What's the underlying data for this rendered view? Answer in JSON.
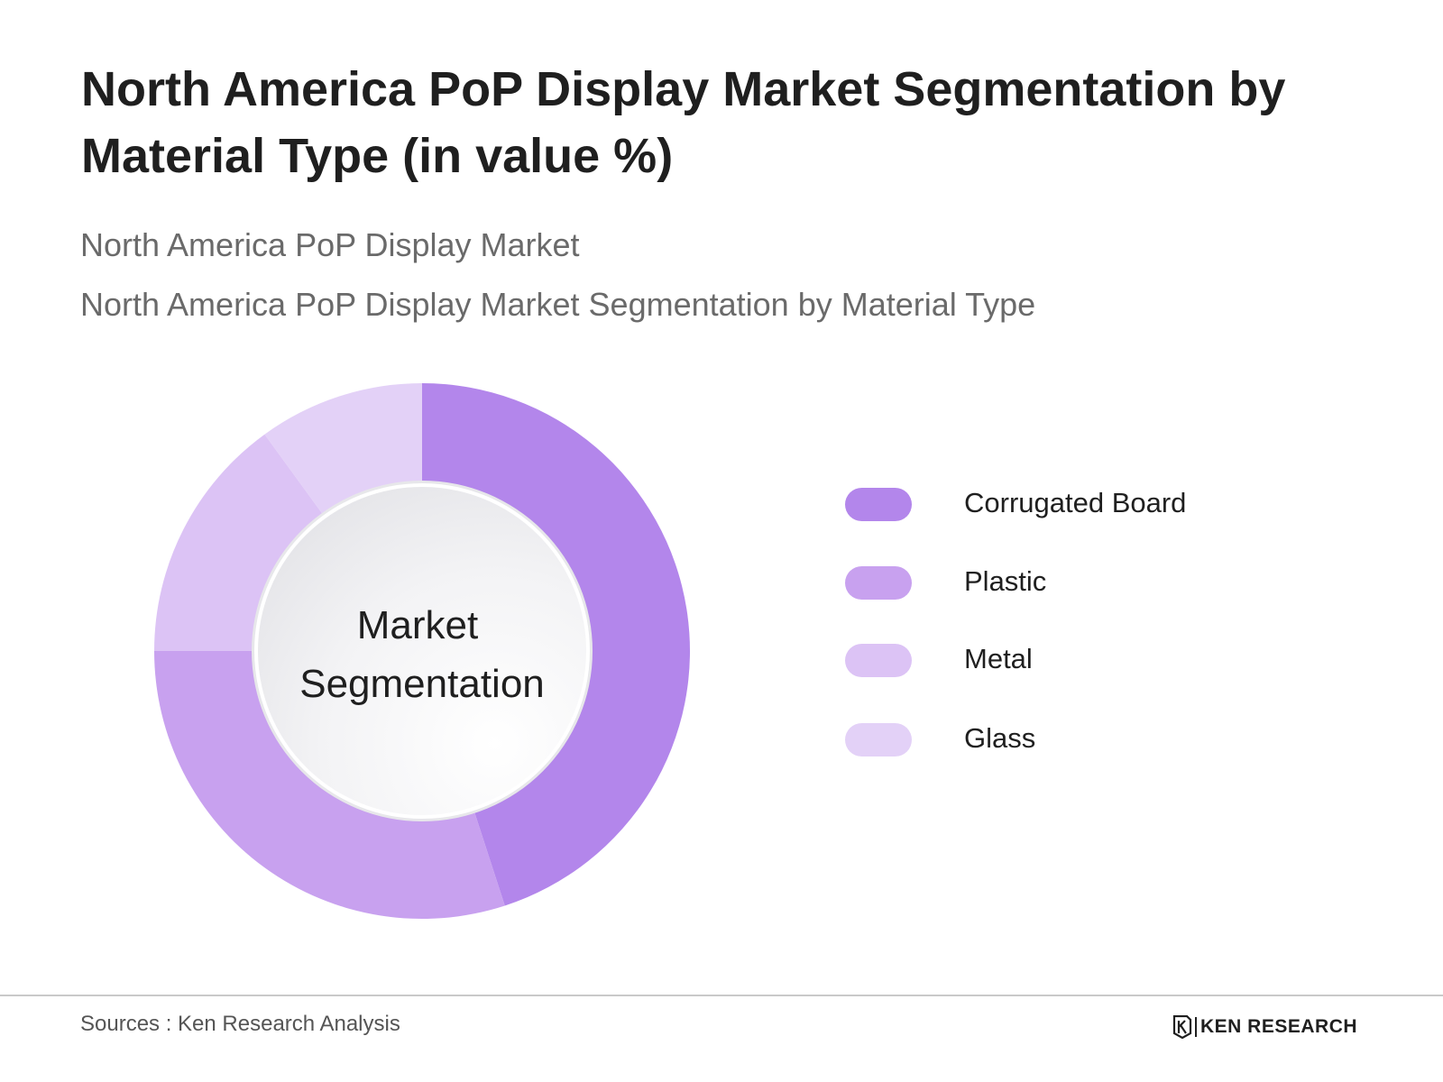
{
  "header": {
    "title": "North America PoP Display Market Segmentation by Material Type (in value %)",
    "subtitle_1": "North America PoP Display Market",
    "subtitle_2": "North America PoP Display Market Segmentation by Material Type"
  },
  "chart_data": {
    "type": "pie",
    "variant": "donut",
    "center_label_line1": "Market",
    "center_label_line2": "Segmentation",
    "categories": [
      "Corrugated Board",
      "Plastic",
      "Metal",
      "Glass"
    ],
    "values": [
      45,
      30,
      15,
      10
    ],
    "colors": [
      "#b386eb",
      "#c8a1ef",
      "#dcc3f5",
      "#e3d1f7"
    ],
    "legend_position": "right"
  },
  "footer": {
    "source": "Sources : Ken Research Analysis",
    "brand": "KEN RESEARCH",
    "brand_icon": "ken-research-logo-icon"
  }
}
